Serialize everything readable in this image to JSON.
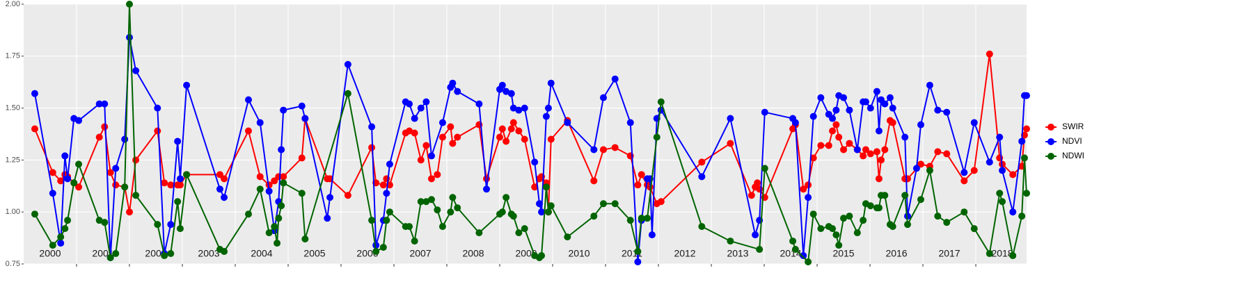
{
  "chart_data": {
    "type": "line",
    "xlim": [
      2000,
      2018.96
    ],
    "xticks": [
      2001,
      2002,
      2003,
      2004,
      2005,
      2006,
      2007,
      2008,
      2009,
      2010,
      2011,
      2012,
      2013,
      2014,
      2015,
      2016,
      2017,
      2018
    ],
    "year_labels": [
      {
        "value": 2000.5,
        "label": "2000"
      },
      {
        "value": 2001.5,
        "label": "2001"
      },
      {
        "value": 2002.5,
        "label": "2002"
      },
      {
        "value": 2003.5,
        "label": "2003"
      },
      {
        "value": 2004.5,
        "label": "2004"
      },
      {
        "value": 2005.5,
        "label": "2005"
      },
      {
        "value": 2006.5,
        "label": "2006"
      },
      {
        "value": 2007.5,
        "label": "2007"
      },
      {
        "value": 2008.5,
        "label": "2008"
      },
      {
        "value": 2009.5,
        "label": "2009"
      },
      {
        "value": 2010.5,
        "label": "2010"
      },
      {
        "value": 2011.5,
        "label": "2011"
      },
      {
        "value": 2012.5,
        "label": "2012"
      },
      {
        "value": 2013.5,
        "label": "2013"
      },
      {
        "value": 2014.5,
        "label": "2014"
      },
      {
        "value": 2015.5,
        "label": "2015"
      },
      {
        "value": 2016.5,
        "label": "2016"
      },
      {
        "value": 2017.5,
        "label": "2017"
      },
      {
        "value": 2018.5,
        "label": "2018"
      }
    ],
    "ylim": [
      0.75,
      2.0
    ],
    "yticks": [
      {
        "value": 0.75,
        "label": "0.75"
      },
      {
        "value": 1.0,
        "label": "1.00"
      },
      {
        "value": 1.25,
        "label": "1.25"
      },
      {
        "value": 1.5,
        "label": "1.50"
      },
      {
        "value": 1.75,
        "label": "1.75"
      },
      {
        "value": 2.0,
        "label": "2.00"
      }
    ],
    "grid": true,
    "legend": "right",
    "series": [
      {
        "name": "SWIR",
        "color": "#ff0000",
        "x": [
          2000.21,
          2000.55,
          2000.7,
          2000.78,
          2000.83,
          2000.95,
          2001.04,
          2001.43,
          2001.53,
          2001.64,
          2001.74,
          2001.91,
          2002.0,
          2002.12,
          2002.53,
          2002.66,
          2002.78,
          2002.91,
          2002.96,
          2003.08,
          2003.71,
          2003.79,
          2004.25,
          2004.47,
          2004.64,
          2004.74,
          2004.82,
          2004.91,
          2005.26,
          2005.32,
          2005.74,
          2005.79,
          2006.13,
          2006.58,
          2006.66,
          2006.8,
          2006.86,
          2006.92,
          2007.22,
          2007.29,
          2007.39,
          2007.51,
          2007.61,
          2007.71,
          2007.82,
          2007.92,
          2008.07,
          2008.11,
          2008.2,
          2008.61,
          2008.75,
          2009.0,
          2009.05,
          2009.12,
          2009.22,
          2009.26,
          2009.36,
          2009.47,
          2009.66,
          2009.75,
          2009.79,
          2009.88,
          2009.92,
          2009.97,
          2010.28,
          2010.78,
          2010.96,
          2011.18,
          2011.47,
          2011.61,
          2011.68,
          2011.79,
          2011.84,
          2011.97,
          2012.05,
          2012.82,
          2013.36,
          2013.76,
          2013.83,
          2013.87,
          2013.91,
          2014.01,
          2014.54,
          2014.59,
          2014.74,
          2014.83,
          2014.93,
          2015.07,
          2015.22,
          2015.29,
          2015.36,
          2015.41,
          2015.5,
          2015.61,
          2015.76,
          2015.87,
          2015.92,
          2016.01,
          2016.13,
          2016.17,
          2016.21,
          2016.28,
          2016.38,
          2016.43,
          2016.66,
          2016.71,
          2016.96,
          2017.13,
          2017.28,
          2017.45,
          2017.78,
          2017.97,
          2018.26,
          2018.45,
          2018.5,
          2018.7,
          2018.87,
          2018.92,
          2018.96
        ],
        "values": [
          1.4,
          1.19,
          1.15,
          1.18,
          1.17,
          1.14,
          1.12,
          1.36,
          1.41,
          1.19,
          1.13,
          1.12,
          1.0,
          1.25,
          1.39,
          1.14,
          1.13,
          1.13,
          1.13,
          1.18,
          1.18,
          1.16,
          1.39,
          1.17,
          1.13,
          1.15,
          1.17,
          1.17,
          1.26,
          1.45,
          1.16,
          1.16,
          1.08,
          1.31,
          1.14,
          1.13,
          1.16,
          1.13,
          1.38,
          1.39,
          1.38,
          1.25,
          1.32,
          1.16,
          1.18,
          1.36,
          1.41,
          1.33,
          1.36,
          1.42,
          1.16,
          1.36,
          1.4,
          1.34,
          1.4,
          1.43,
          1.39,
          1.35,
          1.12,
          1.16,
          1.17,
          1.14,
          1.0,
          1.35,
          1.44,
          1.15,
          1.3,
          1.31,
          1.27,
          1.13,
          1.18,
          1.13,
          1.12,
          1.04,
          1.05,
          1.24,
          1.33,
          1.08,
          1.12,
          1.14,
          1.11,
          1.07,
          1.4,
          1.42,
          1.11,
          1.13,
          1.26,
          1.32,
          1.32,
          1.39,
          1.42,
          1.36,
          1.3,
          1.33,
          1.3,
          1.27,
          1.3,
          1.28,
          1.29,
          1.16,
          1.25,
          1.3,
          1.44,
          1.43,
          1.16,
          1.16,
          1.23,
          1.22,
          1.29,
          1.28,
          1.15,
          1.2,
          1.76,
          1.26,
          1.23,
          1.18,
          1.22,
          1.37,
          1.4
        ]
      },
      {
        "name": "NDVI",
        "color": "#0000ff",
        "x": [
          2000.21,
          2000.55,
          2000.7,
          2000.78,
          2000.83,
          2000.95,
          2001.04,
          2001.43,
          2001.53,
          2001.64,
          2001.74,
          2001.91,
          2002.0,
          2002.12,
          2002.53,
          2002.66,
          2002.78,
          2002.91,
          2002.96,
          2003.08,
          2003.71,
          2003.79,
          2004.25,
          2004.47,
          2004.64,
          2004.74,
          2004.82,
          2004.87,
          2004.91,
          2005.26,
          2005.32,
          2005.74,
          2005.79,
          2006.13,
          2006.58,
          2006.66,
          2006.8,
          2006.86,
          2006.92,
          2007.22,
          2007.29,
          2007.39,
          2007.51,
          2007.61,
          2007.71,
          2007.92,
          2008.07,
          2008.11,
          2008.2,
          2008.61,
          2008.75,
          2009.0,
          2009.05,
          2009.12,
          2009.22,
          2009.26,
          2009.36,
          2009.47,
          2009.66,
          2009.75,
          2009.79,
          2009.88,
          2009.92,
          2009.97,
          2010.28,
          2010.78,
          2010.96,
          2011.18,
          2011.47,
          2011.61,
          2011.68,
          2011.79,
          2011.84,
          2011.88,
          2011.97,
          2012.05,
          2012.82,
          2013.36,
          2013.83,
          2013.91,
          2014.01,
          2014.54,
          2014.59,
          2014.74,
          2014.83,
          2014.93,
          2015.07,
          2015.22,
          2015.29,
          2015.36,
          2015.41,
          2015.5,
          2015.61,
          2015.76,
          2015.87,
          2015.92,
          2016.01,
          2016.13,
          2016.17,
          2016.21,
          2016.28,
          2016.38,
          2016.43,
          2016.66,
          2016.71,
          2016.88,
          2016.96,
          2017.13,
          2017.28,
          2017.45,
          2017.78,
          2017.97,
          2018.26,
          2018.45,
          2018.5,
          2018.7,
          2018.87,
          2018.92,
          2018.96
        ],
        "values": [
          1.57,
          1.09,
          0.85,
          1.27,
          1.16,
          1.45,
          1.44,
          1.52,
          1.52,
          0.78,
          1.21,
          1.35,
          1.84,
          1.68,
          1.5,
          0.8,
          0.94,
          1.34,
          1.16,
          1.61,
          1.11,
          1.07,
          1.54,
          1.43,
          1.1,
          0.91,
          1.05,
          1.3,
          1.49,
          1.51,
          1.45,
          0.97,
          1.07,
          1.71,
          1.41,
          0.84,
          0.96,
          1.09,
          1.23,
          1.53,
          1.52,
          1.45,
          1.5,
          1.53,
          1.27,
          1.43,
          1.6,
          1.62,
          1.58,
          1.52,
          1.11,
          1.59,
          1.61,
          1.58,
          1.57,
          1.5,
          1.49,
          1.5,
          1.24,
          1.04,
          1.0,
          1.46,
          1.5,
          1.62,
          1.43,
          1.3,
          1.55,
          1.64,
          1.43,
          0.76,
          0.96,
          1.16,
          1.16,
          0.89,
          1.45,
          1.49,
          1.17,
          1.45,
          0.89,
          0.96,
          1.48,
          1.45,
          1.43,
          0.79,
          1.07,
          1.46,
          1.55,
          1.47,
          1.45,
          1.49,
          1.56,
          1.55,
          1.49,
          1.3,
          1.53,
          1.53,
          1.5,
          1.58,
          1.39,
          1.54,
          1.52,
          1.55,
          1.5,
          1.36,
          0.98,
          1.21,
          1.42,
          1.61,
          1.49,
          1.48,
          1.19,
          1.43,
          1.24,
          1.36,
          1.2,
          1.0,
          1.34,
          1.56,
          1.56
        ]
      },
      {
        "name": "NDWI",
        "color": "#006400",
        "x": [
          2000.21,
          2000.55,
          2000.7,
          2000.78,
          2000.83,
          2000.95,
          2001.04,
          2001.43,
          2001.53,
          2001.64,
          2001.74,
          2001.91,
          2002.0,
          2002.12,
          2002.53,
          2002.66,
          2002.78,
          2002.91,
          2002.96,
          2003.08,
          2003.71,
          2003.79,
          2004.25,
          2004.47,
          2004.64,
          2004.74,
          2004.79,
          2004.82,
          2004.87,
          2004.91,
          2005.26,
          2005.32,
          2006.13,
          2006.58,
          2006.66,
          2006.8,
          2006.86,
          2006.92,
          2007.22,
          2007.29,
          2007.39,
          2007.51,
          2007.61,
          2007.71,
          2007.82,
          2007.92,
          2008.07,
          2008.11,
          2008.2,
          2008.61,
          2009.0,
          2009.05,
          2009.12,
          2009.22,
          2009.26,
          2009.36,
          2009.47,
          2009.66,
          2009.75,
          2009.79,
          2009.88,
          2009.92,
          2009.97,
          2010.28,
          2010.78,
          2010.96,
          2011.18,
          2011.47,
          2011.61,
          2011.68,
          2011.79,
          2011.97,
          2012.05,
          2012.82,
          2013.36,
          2013.91,
          2014.01,
          2014.54,
          2014.59,
          2014.83,
          2014.93,
          2015.07,
          2015.22,
          2015.29,
          2015.36,
          2015.41,
          2015.5,
          2015.61,
          2015.76,
          2015.87,
          2015.92,
          2016.01,
          2016.13,
          2016.17,
          2016.21,
          2016.28,
          2016.38,
          2016.43,
          2016.66,
          2016.71,
          2016.96,
          2017.13,
          2017.28,
          2017.45,
          2017.78,
          2017.97,
          2018.26,
          2018.45,
          2018.5,
          2018.7,
          2018.87,
          2018.92,
          2018.96
        ],
        "values": [
          0.99,
          0.84,
          0.88,
          0.92,
          0.96,
          1.14,
          1.23,
          0.96,
          0.95,
          0.78,
          0.8,
          1.12,
          2.0,
          1.08,
          0.94,
          0.79,
          0.8,
          1.05,
          0.92,
          1.18,
          0.82,
          0.81,
          0.99,
          1.11,
          0.9,
          0.93,
          0.85,
          0.97,
          1.03,
          1.14,
          1.09,
          0.87,
          1.57,
          0.96,
          0.81,
          0.83,
          0.96,
          1.0,
          0.93,
          0.93,
          0.86,
          1.05,
          1.05,
          1.06,
          1.01,
          0.93,
          1.0,
          1.07,
          1.02,
          0.9,
          0.99,
          1.0,
          1.07,
          0.99,
          0.98,
          0.9,
          0.92,
          0.79,
          0.78,
          0.79,
          1.12,
          1.0,
          1.03,
          0.88,
          0.98,
          1.04,
          1.04,
          0.96,
          0.81,
          0.97,
          0.97,
          1.36,
          1.53,
          0.93,
          0.86,
          0.82,
          1.21,
          0.86,
          0.82,
          0.76,
          0.99,
          0.92,
          0.93,
          0.92,
          0.89,
          0.84,
          0.97,
          0.98,
          0.9,
          0.96,
          1.04,
          1.03,
          1.02,
          1.02,
          1.08,
          1.08,
          0.94,
          0.93,
          1.08,
          0.94,
          1.06,
          1.2,
          0.98,
          0.95,
          1.0,
          0.92,
          0.8,
          1.09,
          1.05,
          0.79,
          0.98,
          1.26,
          1.09
        ]
      }
    ]
  }
}
